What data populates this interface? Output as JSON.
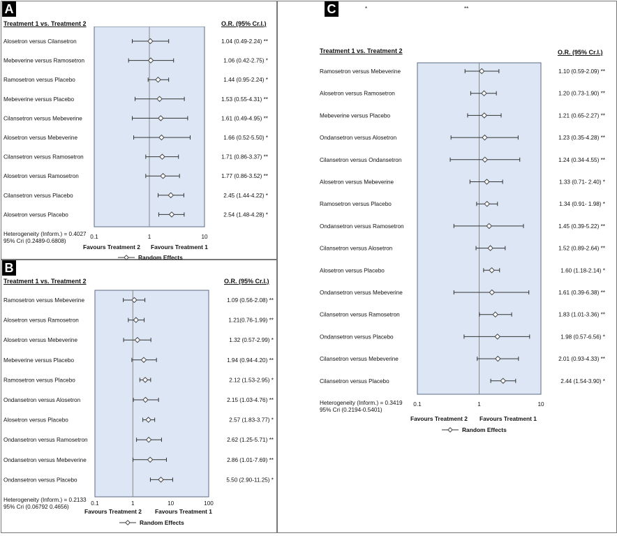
{
  "panels": [
    {
      "letter": "A",
      "header_left": "Treatment 1 vs. Treatment 2",
      "header_right": "O.R. (95% Cr.I.)",
      "heterogeneity_line1": "Heterogeneity (Inform.) = 0.4027",
      "heterogeneity_line2": "95% Cri (0.2489-0.6808)",
      "favours_left": "Favours Treatment 2",
      "favours_right": "Favours Treatment 1",
      "legend": "Random Effects",
      "ticks": [
        "0.1",
        "1",
        "10"
      ]
    },
    {
      "letter": "B",
      "header_left": "Treatment 1 vs. Treatment 2",
      "header_right": "O.R. (95% Cr.I.)",
      "heterogeneity_line1": "Heterogeneity (Inform.) = 0.2133",
      "heterogeneity_line2": "95% Cri (0.06792 0.4656)",
      "favours_left": "Favours Treatment 2",
      "favours_right": "Favours Treatment 1",
      "legend": "Random Effects",
      "ticks": [
        "0.1",
        "1",
        "10",
        "100"
      ]
    },
    {
      "letter": "C",
      "header_left": "Treatment 1 vs. Treatment 2",
      "header_right": "O.R. (95% Cr.I.)",
      "heterogeneity_line1": "Heterogeneity (Inform.) = 0.3419",
      "heterogeneity_line2": "95% Cri (0.2194-0.5401)",
      "favours_left": "Favours Treatment 2",
      "favours_right": "Favours Treatment 1",
      "legend": "Random Effects",
      "ticks": [
        "0.1",
        "1",
        "10"
      ],
      "top_marks": [
        "*",
        "**"
      ]
    }
  ],
  "chart_data": [
    {
      "type": "scatter",
      "subtype": "forest-plot",
      "x_scale": "log",
      "xlim": [
        0.1,
        10
      ],
      "series_label": "Random Effects",
      "rows": [
        {
          "label": "Alosetron versus Cilansetron",
          "or": 1.04,
          "lo": 0.49,
          "hi": 2.24,
          "text": "1.04 (0.49-2.24) **"
        },
        {
          "label": "Mebeverine versus Ramosetron",
          "or": 1.06,
          "lo": 0.42,
          "hi": 2.75,
          "text": "1.06 (0.42-2.75) *"
        },
        {
          "label": "Ramosetron versus Placebo",
          "or": 1.44,
          "lo": 0.95,
          "hi": 2.24,
          "text": "1.44 (0.95-2.24) *"
        },
        {
          "label": "Mebeverine versus Placebo",
          "or": 1.53,
          "lo": 0.55,
          "hi": 4.31,
          "text": "1.53 (0.55-4.31) **"
        },
        {
          "label": "Cilansetron versus Mebeverine",
          "or": 1.61,
          "lo": 0.49,
          "hi": 4.95,
          "text": "1.61 (0.49-4.95) **"
        },
        {
          "label": "Alosetron versus Mebeverine",
          "or": 1.66,
          "lo": 0.52,
          "hi": 5.5,
          "text": "1.66 (0.52-5.50) *"
        },
        {
          "label": "Cilansetron versus Ramosetron",
          "or": 1.71,
          "lo": 0.86,
          "hi": 3.37,
          "text": "1.71 (0.86-3.37) **"
        },
        {
          "label": "Alosetron versus Ramosetron",
          "or": 1.77,
          "lo": 0.86,
          "hi": 3.52,
          "text": "1.77 (0.86-3.52) **"
        },
        {
          "label": "Cilansetron versus Placebo",
          "or": 2.45,
          "lo": 1.44,
          "hi": 4.22,
          "text": "2.45 (1.44-4.22) *"
        },
        {
          "label": "Alosetron versus Placebo",
          "or": 2.54,
          "lo": 1.48,
          "hi": 4.28,
          "text": "2.54 (1.48-4.28) *"
        }
      ]
    },
    {
      "type": "scatter",
      "subtype": "forest-plot",
      "x_scale": "log",
      "xlim": [
        0.1,
        100
      ],
      "series_label": "Random Effects",
      "rows": [
        {
          "label": "Ramosetron versus Mebeverine",
          "or": 1.09,
          "lo": 0.56,
          "hi": 2.08,
          "text": "1.09 (0.56-2.08) **"
        },
        {
          "label": "Alosetron versus Ramosetron",
          "or": 1.21,
          "lo": 0.76,
          "hi": 1.99,
          "text": "1.21(0.76-1.99) **"
        },
        {
          "label": "Alosetron versus Mebeverine",
          "or": 1.32,
          "lo": 0.57,
          "hi": 2.99,
          "text": "1.32 (0.57-2.99) *"
        },
        {
          "label": "Mebeverine versus Placebo",
          "or": 1.94,
          "lo": 0.94,
          "hi": 4.2,
          "text": "1.94 (0.94-4.20) **"
        },
        {
          "label": "Ramosetron versus Placebo",
          "or": 2.12,
          "lo": 1.53,
          "hi": 2.95,
          "text": "2.12 (1.53-2.95) *"
        },
        {
          "label": "Ondansetron versus Alosetron",
          "or": 2.15,
          "lo": 1.03,
          "hi": 4.76,
          "text": "2.15 (1.03-4.76) **"
        },
        {
          "label": "Alosetron versus Placebo",
          "or": 2.57,
          "lo": 1.83,
          "hi": 3.77,
          "text": "2.57 (1.83-3.77) *"
        },
        {
          "label": "Ondansetron versus Ramosetron",
          "or": 2.62,
          "lo": 1.25,
          "hi": 5.71,
          "text": "2.62 (1.25-5.71) **"
        },
        {
          "label": "Ondansetron versus Mebeverine",
          "or": 2.86,
          "lo": 1.01,
          "hi": 7.69,
          "text": "2.86 (1.01-7.69) **"
        },
        {
          "label": "Ondansetron versus Placebo",
          "or": 5.5,
          "lo": 2.9,
          "hi": 11.25,
          "text": "5.50 (2.90-11.25) *"
        }
      ]
    },
    {
      "type": "scatter",
      "subtype": "forest-plot",
      "x_scale": "log",
      "xlim": [
        0.1,
        10
      ],
      "series_label": "Random Effects",
      "rows": [
        {
          "label": "Ramosetron versus Mebeverine",
          "or": 1.1,
          "lo": 0.59,
          "hi": 2.09,
          "text": "1.10 (0.59-2.09) **"
        },
        {
          "label": "Alosetron versus Ramosetron",
          "or": 1.2,
          "lo": 0.73,
          "hi": 1.9,
          "text": "1.20 (0.73-1.90) **"
        },
        {
          "label": "Mebeverine versus Placebo",
          "or": 1.21,
          "lo": 0.65,
          "hi": 2.27,
          "text": "1.21 (0.65-2.27) **"
        },
        {
          "label": "Ondansetron versus Alosetron",
          "or": 1.23,
          "lo": 0.35,
          "hi": 4.28,
          "text": "1.23 (0.35-4.28) **"
        },
        {
          "label": "Cilansetron versus Ondansetron",
          "or": 1.24,
          "lo": 0.34,
          "hi": 4.55,
          "text": "1.24 (0.34-4.55) **"
        },
        {
          "label": "Alosetron versus Mebeverine",
          "or": 1.33,
          "lo": 0.71,
          "hi": 2.4,
          "text": "1.33 (0.71- 2.40) *"
        },
        {
          "label": "Ramosetron versus Placebo",
          "or": 1.34,
          "lo": 0.91,
          "hi": 1.98,
          "text": "1.34 (0.91- 1.98) *"
        },
        {
          "label": "Ondansetron versus Ramosetron",
          "or": 1.45,
          "lo": 0.39,
          "hi": 5.22,
          "text": "1.45 (0.39-5.22) **"
        },
        {
          "label": "Cilansetron versus Alosetron",
          "or": 1.52,
          "lo": 0.89,
          "hi": 2.64,
          "text": "1.52 (0.89-2.64) **"
        },
        {
          "label": "Alosetron versus Placebo",
          "or": 1.6,
          "lo": 1.18,
          "hi": 2.14,
          "text": "1.60 (1.18-2.14) *"
        },
        {
          "label": "Ondansetron versus Mebeverine",
          "or": 1.61,
          "lo": 0.39,
          "hi": 6.38,
          "text": "1.61 (0.39-6.38) **"
        },
        {
          "label": "Cilansetron versus Ramosetron",
          "or": 1.83,
          "lo": 1.01,
          "hi": 3.36,
          "text": "1.83 (1.01-3.36) **"
        },
        {
          "label": "Ondansetron versus Placebo",
          "or": 1.98,
          "lo": 0.57,
          "hi": 6.56,
          "text": "1.98 (0.57-6.56) *"
        },
        {
          "label": "Cilansetron versus Mebeverine",
          "or": 2.01,
          "lo": 0.93,
          "hi": 4.33,
          "text": "2.01 (0.93-4.33) **"
        },
        {
          "label": "Cilansetron versus Placebo",
          "or": 2.44,
          "lo": 1.54,
          "hi": 3.9,
          "text": "2.44 (1.54-3.90) *"
        }
      ]
    }
  ],
  "colors": {
    "plot_bg": "#dce6f4",
    "plot_border": "#5b6b84",
    "ci_line": "#333333",
    "marker_fill": "#ffffff",
    "marker_stroke": "#444444",
    "ref_line": "#888888"
  }
}
